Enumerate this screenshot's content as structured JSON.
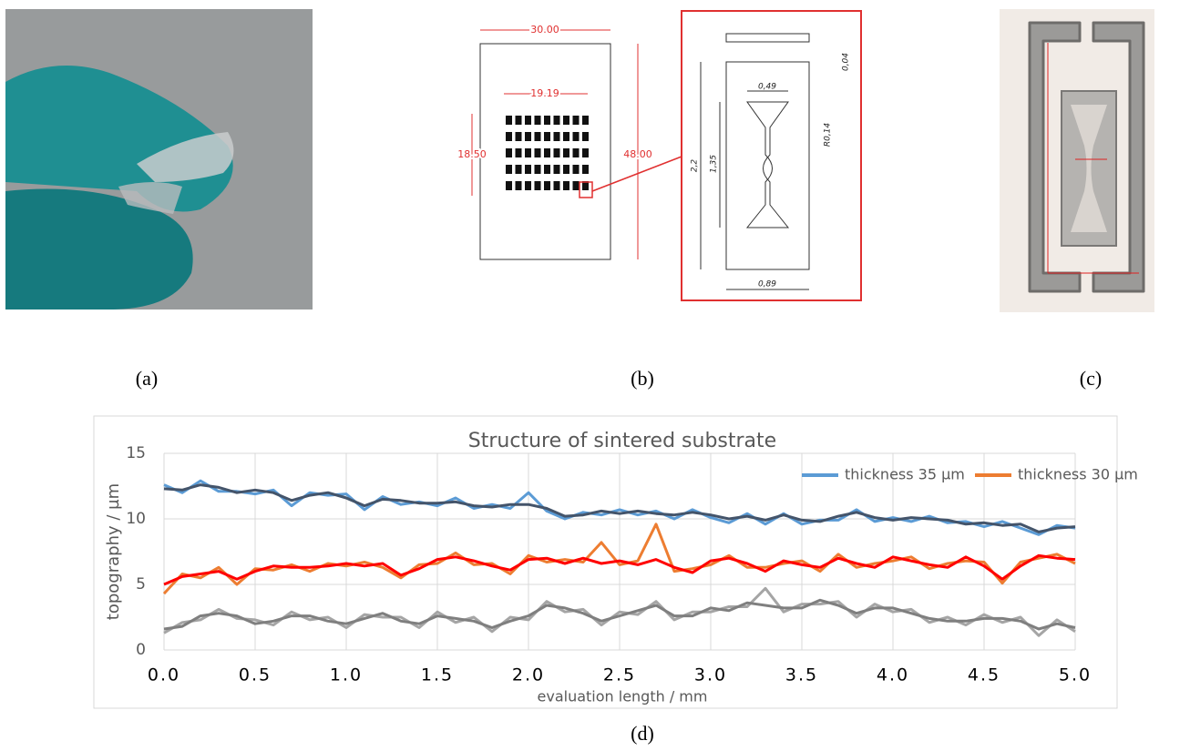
{
  "panels": {
    "a": "(a)",
    "b": "(b)",
    "c": "(c)",
    "d": "(d)"
  },
  "drawing": {
    "labels": [
      "30.00",
      "19.19",
      "18.50",
      "48.00",
      "0,49",
      "0,04",
      "R0,14",
      "2,2",
      "1,35",
      "0,89"
    ]
  },
  "chart_data": {
    "type": "line",
    "title": "Structure of sintered substrate",
    "x_label": "evaluation length / mm",
    "y_label": "topography / µm",
    "x": [
      0,
      0.1,
      0.2,
      0.3,
      0.4,
      0.5,
      0.6,
      0.7,
      0.8,
      0.9,
      1.0,
      1.1,
      1.2,
      1.3,
      1.4,
      1.5,
      1.6,
      1.7,
      1.8,
      1.9,
      2.0,
      2.1,
      2.2,
      2.3,
      2.4,
      2.5,
      2.6,
      2.7,
      2.8,
      2.9,
      3.0,
      3.1,
      3.2,
      3.3,
      3.4,
      3.5,
      3.6,
      3.7,
      3.8,
      3.9,
      4.0,
      4.1,
      4.2,
      4.3,
      4.4,
      4.5,
      4.6,
      4.7,
      4.8,
      4.9,
      5.0
    ],
    "series": [
      {
        "name": "thickness 35 µm",
        "color": "#5b9bd5",
        "values": [
          12.6,
          12.0,
          12.9,
          12.1,
          12.1,
          11.9,
          12.2,
          11.0,
          12.0,
          11.8,
          11.9,
          10.7,
          11.7,
          11.1,
          11.3,
          11.0,
          11.6,
          10.8,
          11.1,
          10.8,
          12.0,
          10.6,
          10.0,
          10.5,
          10.3,
          10.7,
          10.3,
          10.6,
          10.0,
          10.7,
          10.1,
          9.7,
          10.4,
          9.6,
          10.4,
          9.6,
          9.9,
          9.9,
          10.7,
          9.8,
          10.1,
          9.8,
          10.2,
          9.7,
          9.8,
          9.4,
          9.8,
          9.3,
          8.8,
          9.5,
          9.3
        ]
      },
      {
        "name": "thickness 30 µm",
        "color": "#ed7d31",
        "values": [
          4.3,
          5.8,
          5.5,
          6.3,
          5.0,
          6.2,
          6.1,
          6.5,
          6.0,
          6.6,
          6.4,
          6.7,
          6.3,
          5.5,
          6.5,
          6.6,
          7.4,
          6.5,
          6.6,
          5.8,
          7.2,
          6.7,
          6.9,
          6.7,
          8.2,
          6.5,
          6.8,
          9.6,
          6.0,
          6.2,
          6.5,
          7.2,
          6.3,
          6.3,
          6.6,
          6.8,
          6.0,
          7.3,
          6.3,
          6.6,
          6.8,
          7.1,
          6.2,
          6.6,
          6.8,
          6.7,
          5.1,
          6.7,
          7.0,
          7.3,
          6.6
        ]
      },
      {
        "color": "#a5a5a5",
        "values": [
          1.3,
          2.1,
          2.3,
          3.1,
          2.4,
          2.3,
          1.9,
          2.9,
          2.3,
          2.5,
          1.7,
          2.7,
          2.5,
          2.5,
          1.7,
          2.9,
          2.1,
          2.5,
          1.4,
          2.5,
          2.3,
          3.7,
          2.9,
          3.1,
          1.9,
          2.9,
          2.7,
          3.7,
          2.3,
          2.9,
          2.9,
          3.3,
          3.3,
          4.7,
          2.9,
          3.5,
          3.5,
          3.7,
          2.5,
          3.5,
          2.9,
          3.1,
          2.1,
          2.5,
          1.9,
          2.7,
          2.1,
          2.5,
          1.1,
          2.3,
          1.4
        ]
      },
      {
        "color": "#44546a",
        "values": [
          12.3,
          12.2,
          12.6,
          12.4,
          12.0,
          12.2,
          12.0,
          11.4,
          11.8,
          12.0,
          11.6,
          11.0,
          11.5,
          11.4,
          11.2,
          11.2,
          11.3,
          11.0,
          10.9,
          11.1,
          11.1,
          10.8,
          10.2,
          10.3,
          10.6,
          10.4,
          10.6,
          10.4,
          10.3,
          10.5,
          10.3,
          10.0,
          10.2,
          9.9,
          10.3,
          9.9,
          9.8,
          10.2,
          10.5,
          10.1,
          9.9,
          10.1,
          10.0,
          9.9,
          9.6,
          9.7,
          9.5,
          9.6,
          9.0,
          9.3,
          9.4
        ]
      },
      {
        "color": "#ff0000",
        "values": [
          5.0,
          5.6,
          5.8,
          6.0,
          5.4,
          6.0,
          6.4,
          6.3,
          6.3,
          6.4,
          6.6,
          6.4,
          6.6,
          5.7,
          6.2,
          6.9,
          7.1,
          6.8,
          6.4,
          6.1,
          6.9,
          7.0,
          6.6,
          7.0,
          6.6,
          6.8,
          6.5,
          6.9,
          6.3,
          5.9,
          6.8,
          7.0,
          6.6,
          6.0,
          6.8,
          6.5,
          6.3,
          7.0,
          6.6,
          6.3,
          7.1,
          6.8,
          6.5,
          6.3,
          7.1,
          6.4,
          5.4,
          6.4,
          7.2,
          7.0,
          6.9
        ]
      },
      {
        "color": "#7f7f7f",
        "values": [
          1.6,
          1.8,
          2.6,
          2.8,
          2.6,
          2.0,
          2.2,
          2.6,
          2.6,
          2.2,
          2.0,
          2.4,
          2.8,
          2.2,
          2.0,
          2.6,
          2.4,
          2.2,
          1.7,
          2.2,
          2.6,
          3.4,
          3.2,
          2.8,
          2.2,
          2.6,
          3.0,
          3.4,
          2.6,
          2.6,
          3.2,
          3.0,
          3.6,
          3.4,
          3.2,
          3.2,
          3.8,
          3.4,
          2.8,
          3.2,
          3.2,
          2.8,
          2.4,
          2.2,
          2.2,
          2.4,
          2.4,
          2.2,
          1.6,
          2.0,
          1.7
        ]
      }
    ],
    "xlim": [
      0,
      5
    ],
    "ylim": [
      0,
      15
    ],
    "xticks": [
      {
        "value": 0,
        "label": "0.0"
      },
      {
        "value": 0.5,
        "label": "0.5"
      },
      {
        "value": 1,
        "label": "1.0"
      },
      {
        "value": 1.5,
        "label": "1.5"
      },
      {
        "value": 2,
        "label": "2.0"
      },
      {
        "value": 2.5,
        "label": "2.5"
      },
      {
        "value": 3,
        "label": "3.0"
      },
      {
        "value": 3.5,
        "label": "3.5"
      },
      {
        "value": 4,
        "label": "4.0"
      },
      {
        "value": 4.5,
        "label": "4.5"
      },
      {
        "value": 5,
        "label": "5.0"
      }
    ],
    "yticks": [
      0,
      5,
      10,
      15
    ],
    "grid": true,
    "legend": "upper-right"
  }
}
